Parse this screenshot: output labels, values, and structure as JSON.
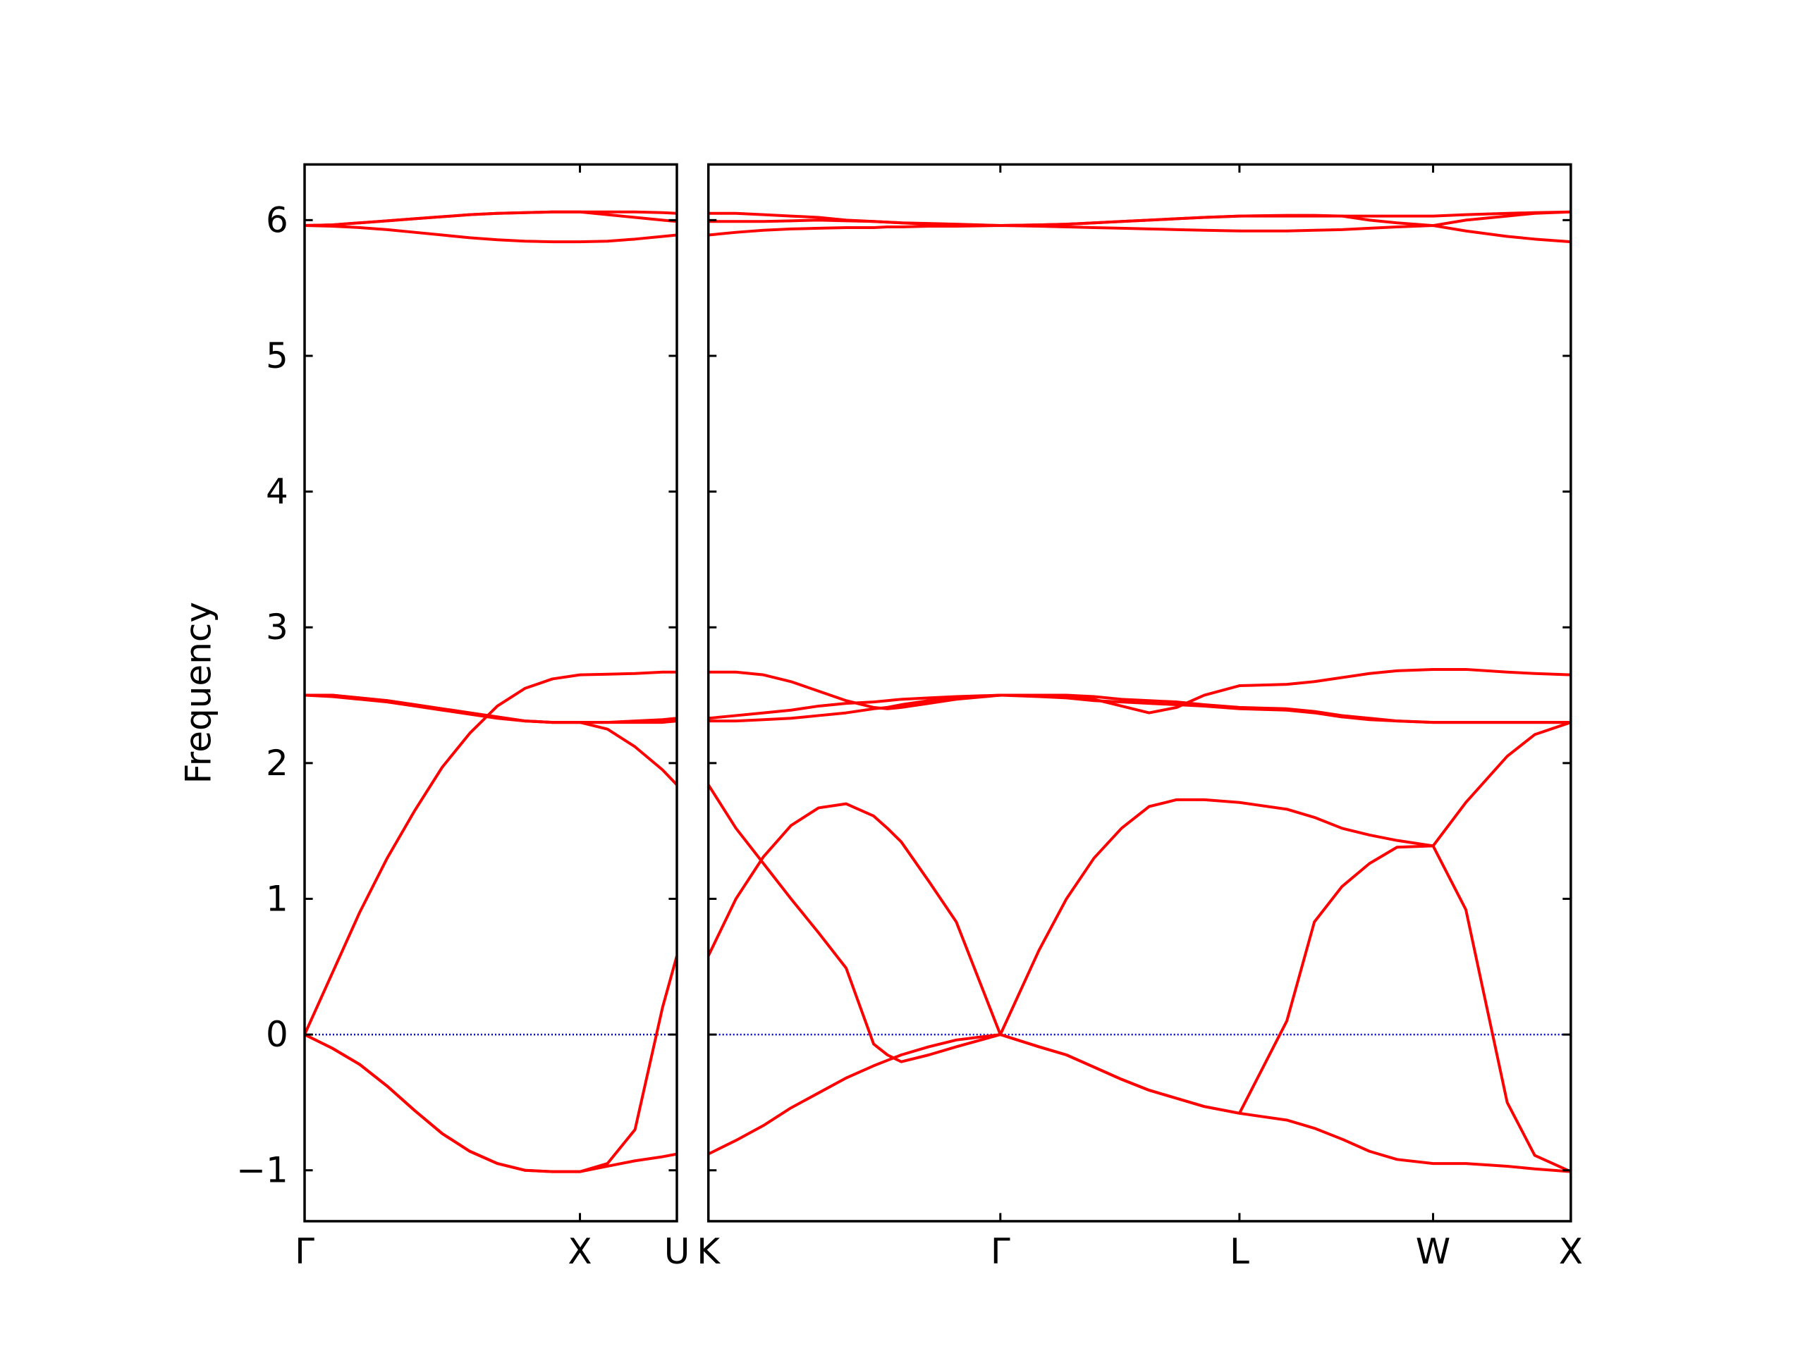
{
  "chart_data": [
    {
      "type": "line",
      "ylabel": "Frequency",
      "color": "#ff0000",
      "hline": 0,
      "hline_color": "#0000cc",
      "xlim": [
        0,
        1.352
      ],
      "ylim": [
        -1.375,
        6.41
      ],
      "xticks": [
        {
          "value": 0,
          "label": "Γ"
        },
        {
          "value": 1,
          "label": "X"
        },
        {
          "value": 1.352,
          "label": "U"
        }
      ],
      "yticks": [
        {
          "value": -1,
          "label": "−1"
        },
        0,
        1,
        2,
        3,
        4,
        5,
        6
      ],
      "x": [
        0,
        0.1,
        0.2,
        0.3,
        0.4,
        0.5,
        0.6,
        0.7,
        0.8,
        0.9,
        1.0,
        1.1,
        1.2,
        1.3,
        1.352
      ],
      "series": [
        {
          "values": [
            0,
            0.45,
            0.9,
            1.3,
            1.65,
            1.97,
            2.22,
            2.42,
            2.55,
            2.62,
            2.65,
            2.655,
            2.66,
            2.67,
            2.67
          ]
        },
        {
          "values": [
            0,
            -0.1,
            -0.22,
            -0.38,
            -0.56,
            -0.73,
            -0.86,
            -0.95,
            -1.0,
            -1.01,
            -1.01,
            -0.97,
            -0.93,
            -0.9,
            -0.88
          ]
        },
        {
          "values": [
            0,
            -0.1,
            -0.22,
            -0.38,
            -0.56,
            -0.73,
            -0.86,
            -0.95,
            -1.0,
            -1.01,
            -1.01,
            -0.95,
            -0.7,
            0.2,
            0.58
          ]
        },
        {
          "values": [
            2.5,
            2.49,
            2.47,
            2.45,
            2.42,
            2.39,
            2.36,
            2.33,
            2.31,
            2.3,
            2.3,
            2.25,
            2.12,
            1.95,
            1.84
          ]
        },
        {
          "values": [
            2.5,
            2.5,
            2.48,
            2.46,
            2.43,
            2.4,
            2.37,
            2.34,
            2.31,
            2.3,
            2.3,
            2.3,
            2.31,
            2.32,
            2.33
          ]
        },
        {
          "values": [
            2.5,
            2.5,
            2.48,
            2.46,
            2.43,
            2.4,
            2.37,
            2.34,
            2.31,
            2.3,
            2.3,
            2.3,
            2.3,
            2.3,
            2.31
          ]
        },
        {
          "values": [
            5.96,
            5.965,
            5.98,
            5.995,
            6.01,
            6.025,
            6.04,
            6.05,
            6.055,
            6.06,
            6.06,
            6.06,
            6.06,
            6.055,
            6.05
          ]
        },
        {
          "values": [
            5.96,
            5.965,
            5.98,
            5.995,
            6.01,
            6.025,
            6.04,
            6.05,
            6.055,
            6.06,
            6.06,
            6.04,
            6.02,
            6.0,
            5.99
          ]
        },
        {
          "values": [
            5.96,
            5.955,
            5.945,
            5.93,
            5.91,
            5.89,
            5.87,
            5.855,
            5.845,
            5.84,
            5.84,
            5.845,
            5.86,
            5.88,
            5.89
          ]
        }
      ]
    },
    {
      "type": "line",
      "color": "#ff0000",
      "hline": 0,
      "hline_color": "#0000cc",
      "xlim": [
        0,
        3.131
      ],
      "ylim": [
        -1.375,
        6.41
      ],
      "xticks": [
        {
          "value": 0,
          "label": "K"
        },
        {
          "value": 1.06,
          "label": "Γ"
        },
        {
          "value": 1.928,
          "label": "L"
        },
        {
          "value": 2.631,
          "label": "W"
        },
        {
          "value": 3.131,
          "label": "X"
        }
      ],
      "yticks": [
        -1,
        0,
        1,
        2,
        3,
        4,
        5,
        6
      ],
      "x": [
        0,
        0.1,
        0.2,
        0.3,
        0.4,
        0.5,
        0.6,
        0.65,
        0.7,
        0.8,
        0.9,
        1.06,
        1.2,
        1.3,
        1.4,
        1.5,
        1.6,
        1.7,
        1.8,
        1.928,
        2.1,
        2.2,
        2.3,
        2.4,
        2.5,
        2.631,
        2.75,
        2.9,
        3.0,
        3.131
      ],
      "series": [
        {
          "values": [
            0.58,
            1.0,
            1.31,
            1.54,
            1.67,
            1.7,
            1.61,
            1.52,
            1.42,
            1.13,
            0.83,
            0,
            0.62,
            1.0,
            1.3,
            1.52,
            1.68,
            1.73,
            1.73,
            1.71,
            1.66,
            1.6,
            1.52,
            1.47,
            1.43,
            1.39,
            1.71,
            2.05,
            2.21,
            2.3
          ]
        },
        {
          "values": [
            1.84,
            1.52,
            1.26,
            1.0,
            0.75,
            0.49,
            -0.07,
            -0.15,
            -0.2,
            -0.15,
            -0.09,
            0,
            -0.09,
            -0.15,
            -0.24,
            -0.33,
            -0.41,
            -0.47,
            -0.53,
            -0.58,
            -0.63,
            -0.69,
            -0.77,
            -0.86,
            -0.92,
            -0.95,
            -0.95,
            -0.97,
            -0.99,
            -1.01
          ]
        },
        {
          "values": [
            -0.88,
            -0.78,
            -0.67,
            -0.54,
            -0.43,
            -0.32,
            -0.23,
            -0.19,
            -0.15,
            -0.09,
            -0.04,
            0,
            -0.09,
            -0.15,
            -0.24,
            -0.33,
            -0.41,
            -0.47,
            -0.53,
            -0.58,
            0.1,
            0.83,
            1.09,
            1.26,
            1.38,
            1.39,
            0.92,
            -0.5,
            -0.89,
            -1.01
          ]
        },
        {
          "values": [
            2.67,
            2.67,
            2.65,
            2.6,
            2.53,
            2.46,
            2.41,
            2.4,
            2.41,
            2.44,
            2.47,
            2.5,
            2.5,
            2.49,
            2.47,
            2.42,
            2.37,
            2.41,
            2.5,
            2.57,
            2.58,
            2.6,
            2.63,
            2.66,
            2.68,
            2.69,
            2.69,
            2.67,
            2.66,
            2.65
          ]
        },
        {
          "values": [
            2.33,
            2.35,
            2.37,
            2.39,
            2.42,
            2.44,
            2.45,
            2.46,
            2.47,
            2.48,
            2.49,
            2.5,
            2.49,
            2.48,
            2.46,
            2.45,
            2.44,
            2.43,
            2.42,
            2.4,
            2.39,
            2.37,
            2.34,
            2.32,
            2.31,
            2.3,
            2.3,
            2.3,
            2.3,
            2.3
          ]
        },
        {
          "values": [
            2.31,
            2.31,
            2.32,
            2.33,
            2.35,
            2.37,
            2.4,
            2.41,
            2.43,
            2.46,
            2.48,
            2.5,
            2.5,
            2.5,
            2.49,
            2.47,
            2.46,
            2.45,
            2.43,
            2.41,
            2.4,
            2.38,
            2.35,
            2.33,
            2.31,
            2.3,
            2.3,
            2.3,
            2.3,
            2.3
          ]
        },
        {
          "values": [
            6.05,
            6.05,
            6.04,
            6.03,
            6.02,
            6.0,
            5.99,
            5.985,
            5.98,
            5.97,
            5.965,
            5.96,
            5.965,
            5.97,
            5.98,
            5.99,
            6.0,
            6.01,
            6.02,
            6.03,
            6.03,
            6.03,
            6.03,
            6.03,
            6.03,
            6.03,
            6.04,
            6.05,
            6.055,
            6.06
          ]
        },
        {
          "values": [
            5.99,
            5.99,
            5.99,
            5.995,
            6.0,
            5.995,
            5.99,
            5.985,
            5.98,
            5.975,
            5.97,
            5.96,
            5.965,
            5.97,
            5.98,
            5.99,
            6.0,
            6.01,
            6.02,
            6.03,
            6.035,
            6.035,
            6.03,
            6.0,
            5.98,
            5.96,
            6.0,
            6.03,
            6.05,
            6.06
          ]
        },
        {
          "values": [
            5.89,
            5.91,
            5.925,
            5.935,
            5.94,
            5.945,
            5.945,
            5.95,
            5.95,
            5.955,
            5.955,
            5.96,
            5.955,
            5.95,
            5.945,
            5.94,
            5.935,
            5.93,
            5.925,
            5.92,
            5.92,
            5.925,
            5.93,
            5.94,
            5.95,
            5.96,
            5.92,
            5.88,
            5.86,
            5.84
          ]
        }
      ]
    }
  ]
}
